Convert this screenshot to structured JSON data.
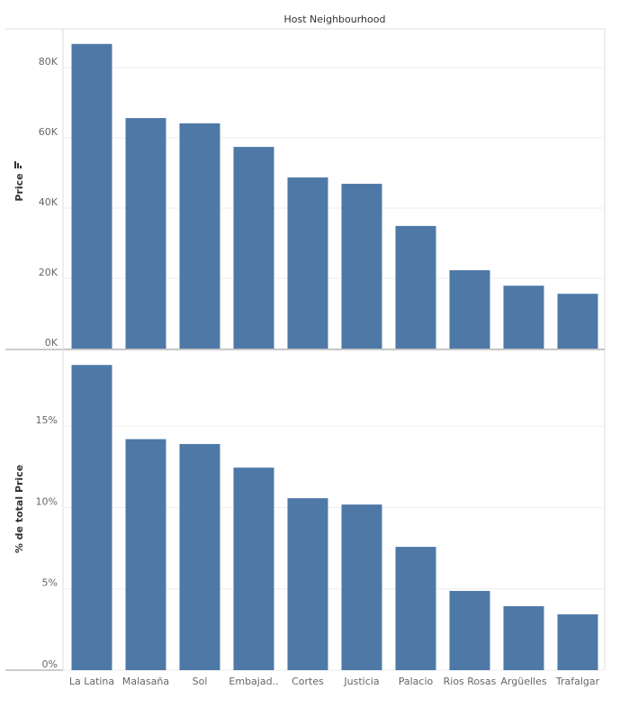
{
  "column_header": "Host Neighbourhood",
  "chart_data": [
    {
      "type": "bar",
      "y_label": "Price",
      "categories": [
        "La Latina",
        "Malasaña",
        "Sol",
        "Embajad..",
        "Cortes",
        "Justicia",
        "Palacio",
        "Rios Rosas",
        "Argüelles",
        "Trafalgar"
      ],
      "values": [
        86700,
        65600,
        64100,
        57400,
        48700,
        46900,
        34900,
        22300,
        17900,
        15600
      ],
      "color": "#4e79a7",
      "ylim": [
        0,
        91000
      ],
      "yticks": [
        {
          "value": 0,
          "label": "0K"
        },
        {
          "value": 20000,
          "label": "20K"
        },
        {
          "value": 40000,
          "label": "40K"
        },
        {
          "value": 60000,
          "label": "60K"
        },
        {
          "value": 80000,
          "label": "80K"
        }
      ],
      "grid": true
    },
    {
      "type": "bar",
      "y_label": "% de total Price",
      "values": [
        18.76,
        14.2,
        13.9,
        12.45,
        10.57,
        10.18,
        7.58,
        4.87,
        3.93,
        3.43
      ],
      "color": "#4e79a7",
      "ylim": [
        0,
        19.6
      ],
      "yticks": [
        {
          "value": 0,
          "label": "0%"
        },
        {
          "value": 5,
          "label": "5%"
        },
        {
          "value": 10,
          "label": "10%"
        },
        {
          "value": 15,
          "label": "15%"
        }
      ],
      "grid": true
    }
  ]
}
